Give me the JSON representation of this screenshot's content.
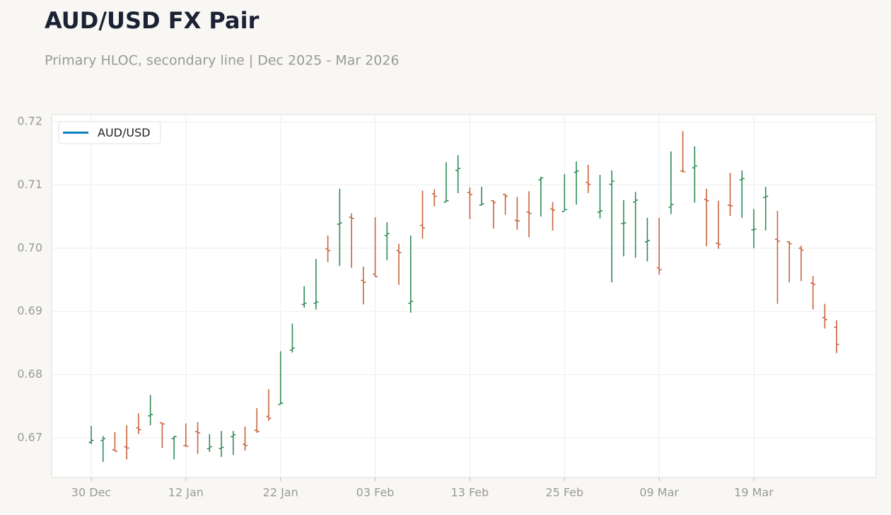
{
  "chart_data": {
    "type": "ohlc",
    "title": "AUD/USD FX Pair",
    "subtitle": "Primary HLOC, secondary line | Dec 2025 - Mar 2026",
    "categories": [
      "30 Dec",
      null,
      null,
      null,
      null,
      null,
      null,
      null,
      "12 Jan",
      null,
      null,
      null,
      null,
      null,
      null,
      null,
      "22 Jan",
      null,
      null,
      null,
      null,
      null,
      null,
      null,
      "03 Feb",
      null,
      null,
      null,
      null,
      null,
      null,
      null,
      "13 Feb",
      null,
      null,
      null,
      null,
      null,
      null,
      null,
      "25 Feb",
      null,
      null,
      null,
      null,
      null,
      null,
      null,
      "09 Mar",
      null,
      null,
      null,
      null,
      null,
      null,
      null,
      "19 Mar",
      null,
      null,
      null,
      null,
      null,
      null,
      null
    ],
    "series": [
      {
        "name": "AUD/USD",
        "color": "#0a7fc0",
        "open": [
          0.6693,
          0.6696,
          0.6681,
          0.6686,
          0.6716,
          0.6735,
          0.6724,
          0.6699,
          0.6688,
          0.671,
          0.6683,
          0.6683,
          0.6702,
          0.669,
          0.6712,
          0.6734,
          0.6753,
          0.6839,
          0.6911,
          0.6913,
          0.6999,
          0.7038,
          0.7049,
          0.6949,
          0.6959,
          0.702,
          0.6996,
          0.6913,
          0.7036,
          0.7086,
          0.7073,
          0.7123,
          0.7088,
          0.7068,
          0.7075,
          0.7085,
          0.7044,
          0.7057,
          0.7108,
          0.7062,
          0.7058,
          0.712,
          0.7104,
          0.7057,
          0.7101,
          0.7039,
          0.7073,
          0.701,
          0.6969,
          0.7065,
          0.7122,
          0.7127,
          0.7077,
          0.7008,
          0.7068,
          0.7108,
          0.7029,
          0.708,
          0.7014,
          0.701,
          0.7,
          0.6945,
          0.689,
          0.6875
        ],
        "high": [
          0.6719,
          0.6703,
          0.6709,
          0.672,
          0.6739,
          0.6768,
          0.6724,
          0.6703,
          0.6723,
          0.6725,
          0.6706,
          0.6711,
          0.6711,
          0.6718,
          0.6747,
          0.6777,
          0.6837,
          0.6881,
          0.694,
          0.6983,
          0.702,
          0.7094,
          0.7055,
          0.6971,
          0.7049,
          0.7041,
          0.7007,
          0.702,
          0.7091,
          0.7093,
          0.7136,
          0.7147,
          0.7096,
          0.7097,
          0.7076,
          0.7086,
          0.7081,
          0.709,
          0.7113,
          0.7073,
          0.7117,
          0.7137,
          0.7132,
          0.7116,
          0.7123,
          0.7076,
          0.7089,
          0.7048,
          0.7048,
          0.7153,
          0.7185,
          0.7161,
          0.7094,
          0.7075,
          0.7119,
          0.7123,
          0.7062,
          0.7097,
          0.7059,
          0.7011,
          0.7004,
          0.6956,
          0.6912,
          0.6886
        ],
        "low": [
          0.669,
          0.6662,
          0.6679,
          0.6666,
          0.6706,
          0.672,
          0.6684,
          0.6666,
          0.6686,
          0.6675,
          0.6678,
          0.667,
          0.6673,
          0.668,
          0.6708,
          0.6727,
          0.6753,
          0.6835,
          0.6906,
          0.6903,
          0.6978,
          0.6972,
          0.6969,
          0.6911,
          0.6955,
          0.6981,
          0.6942,
          0.6898,
          0.7015,
          0.7066,
          0.7073,
          0.7087,
          0.7046,
          0.7068,
          0.7031,
          0.7053,
          0.7029,
          0.7017,
          0.705,
          0.7028,
          0.7059,
          0.7069,
          0.7087,
          0.7047,
          0.6946,
          0.6987,
          0.6985,
          0.6979,
          0.6958,
          0.7054,
          0.712,
          0.7072,
          0.7003,
          0.6999,
          0.7051,
          0.7048,
          0.7,
          0.7028,
          0.6912,
          0.6946,
          0.6948,
          0.6903,
          0.6873,
          0.6834
        ],
        "close": [
          0.6696,
          0.6699,
          0.6679,
          0.6684,
          0.6713,
          0.6737,
          0.6722,
          0.6702,
          0.6687,
          0.6708,
          0.6686,
          0.6685,
          0.6705,
          0.6688,
          0.671,
          0.6731,
          0.6755,
          0.6842,
          0.6913,
          0.6915,
          0.6996,
          0.704,
          0.7047,
          0.6946,
          0.6955,
          0.7023,
          0.6993,
          0.6916,
          0.7032,
          0.7082,
          0.7075,
          0.7126,
          0.7085,
          0.707,
          0.7072,
          0.7082,
          0.7043,
          0.7055,
          0.7111,
          0.706,
          0.7061,
          0.7122,
          0.7101,
          0.7059,
          0.7106,
          0.704,
          0.7076,
          0.7012,
          0.6966,
          0.7069,
          0.7121,
          0.713,
          0.7075,
          0.7006,
          0.7067,
          0.711,
          0.703,
          0.7082,
          0.7011,
          0.7007,
          0.6997,
          0.6943,
          0.6887,
          0.6848
        ]
      }
    ],
    "up_color": "#2e8b57",
    "down_color": "#c8643c",
    "ylim": [
      0.66374,
      0.72112
    ],
    "yticks": [
      0.67,
      0.68,
      0.69,
      {
        "value": 0.7,
        "label": "0.70"
      },
      0.71,
      0.72
    ],
    "grid": true,
    "legend": "upper left"
  }
}
